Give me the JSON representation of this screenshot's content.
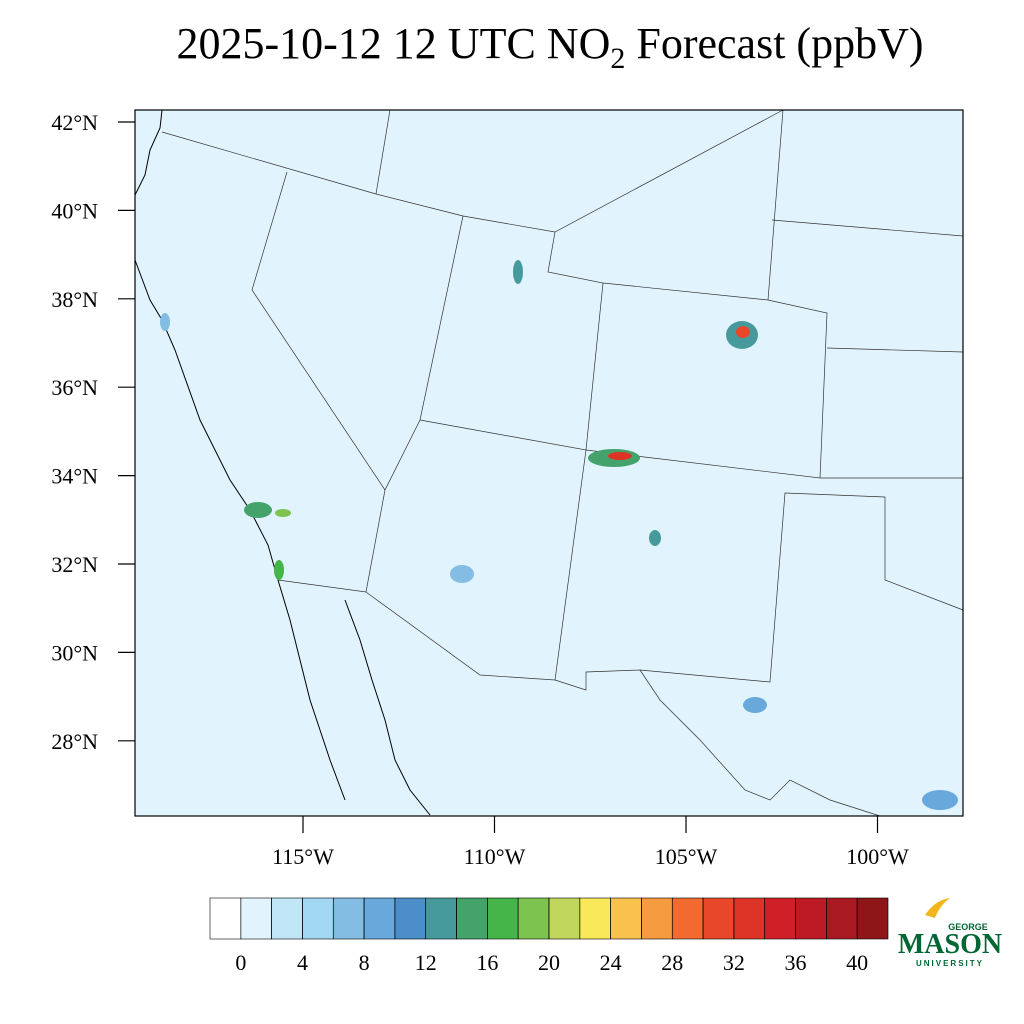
{
  "header": {
    "title": {
      "prefix": "2025-10-12 12 UTC NO",
      "subscript": "2",
      "suffix": " Forecast (ppbV)"
    }
  },
  "map": {
    "lat_labels": [
      {
        "value": 42,
        "label": "42°N"
      },
      {
        "value": 40,
        "label": "40°N"
      },
      {
        "value": 38,
        "label": "38°N"
      },
      {
        "value": 36,
        "label": "36°N"
      },
      {
        "value": 34,
        "label": "34°N"
      },
      {
        "value": 32,
        "label": "32°N"
      },
      {
        "value": 30,
        "label": "30°N"
      },
      {
        "value": 28,
        "label": "28°N"
      }
    ],
    "lon_labels": [
      {
        "value": -115,
        "label": "115°W"
      },
      {
        "value": -110,
        "label": "110°W"
      },
      {
        "value": -105,
        "label": "105°W"
      },
      {
        "value": -100,
        "label": "100°W"
      }
    ]
  },
  "colorbar": {
    "levels": [
      0,
      2,
      4,
      6,
      8,
      10,
      12,
      14,
      16,
      18,
      20,
      22,
      24,
      26,
      28,
      30,
      32,
      34,
      36,
      38,
      40
    ],
    "ticks": [
      0,
      4,
      8,
      12,
      16,
      20,
      24,
      28,
      32,
      36,
      40
    ],
    "colors": [
      "#ffffff",
      "#e1f3fc",
      "#c0e6f8",
      "#a2d8f4",
      "#84bde4",
      "#68a8db",
      "#4b8ec9",
      "#479a9c",
      "#43a36a",
      "#45b54a",
      "#7dc34f",
      "#c0d65c",
      "#f9e85a",
      "#f8c24c",
      "#f69b3f",
      "#f26a30",
      "#e9472a",
      "#dd3427",
      "#cf1f27",
      "#bd1a25",
      "#a81922",
      "#8e1518"
    ]
  },
  "logo": {
    "top": "GEORGE",
    "main": "MASON",
    "bottom": "UNIVERSITY"
  }
}
